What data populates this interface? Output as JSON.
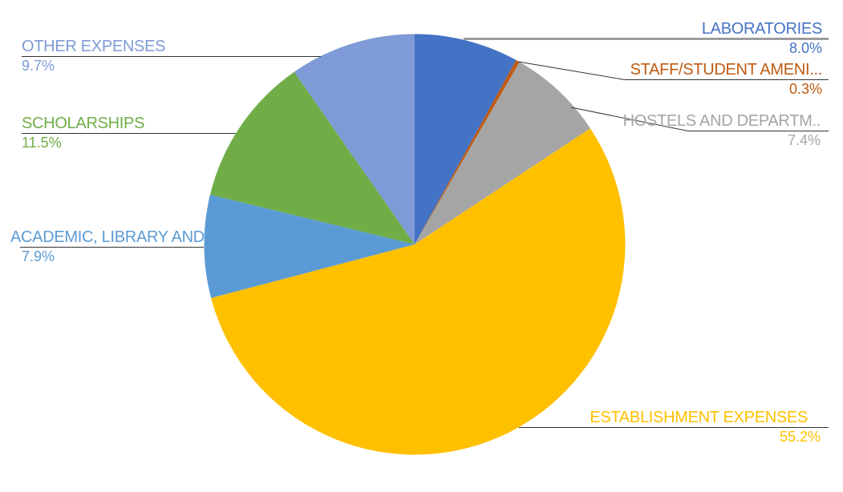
{
  "chart_data": {
    "type": "pie",
    "title": "",
    "start_angle_deg": 0,
    "direction": "clockwise",
    "legend_position": "callout-labels",
    "background_color": "#ffffff",
    "leader_line_color": "#333333",
    "laboratories_leader_color": "#8c8c8c",
    "slices": [
      {
        "label": "LABORATORIES",
        "value": 8.0,
        "pct_label": "8.0%",
        "color": "#4472C4"
      },
      {
        "label": "STAFF/STUDENT AMENI...",
        "value": 0.3,
        "pct_label": "0.3%",
        "color": "#C05A11"
      },
      {
        "label": "HOSTELS AND DEPARTM..",
        "value": 7.4,
        "pct_label": "7.4%",
        "color": "#A5A5A5"
      },
      {
        "label": "ESTABLISHMENT EXPENSES",
        "value": 55.2,
        "pct_label": "55.2%",
        "color": "#FFC000"
      },
      {
        "label": "ACADEMIC, LIBRARY AND...",
        "value": 7.9,
        "pct_label": "7.9%",
        "color": "#5B9BD5"
      },
      {
        "label": "SCHOLARSHIPS",
        "value": 11.5,
        "pct_label": "11.5%",
        "color": "#70AD47"
      },
      {
        "label": "OTHER EXPENSES",
        "value": 9.7,
        "pct_label": "9.7%",
        "color": "#7E9BD7"
      }
    ]
  }
}
